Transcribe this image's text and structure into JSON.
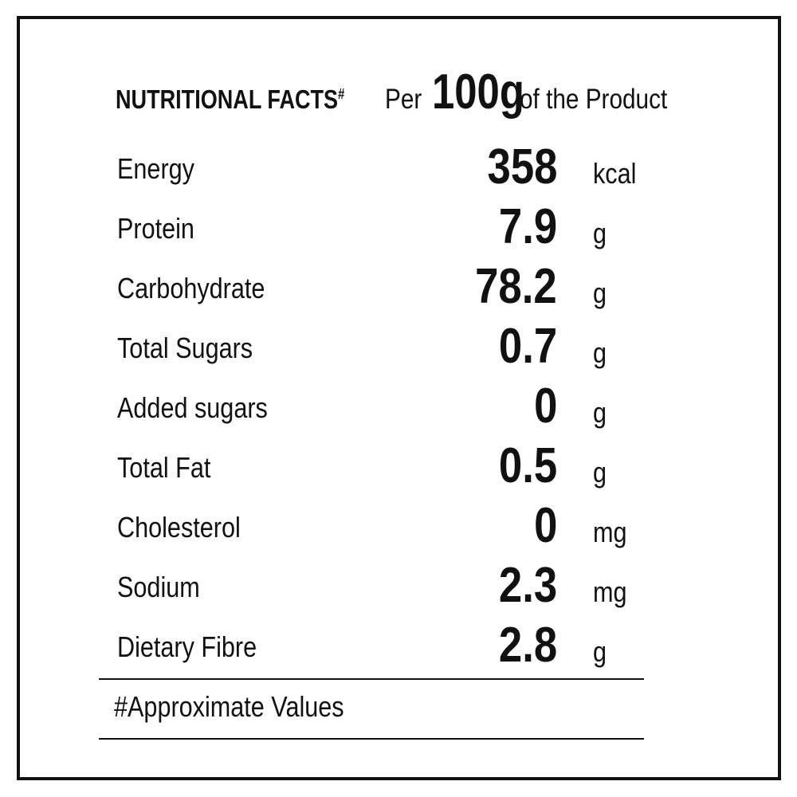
{
  "header": {
    "title": "NUTRITIONAL FACTS",
    "title_mark": "#",
    "per": "Per",
    "amount": "100g",
    "suffix": "of the Product"
  },
  "nutrients": [
    {
      "label": "Energy",
      "value": "358",
      "unit": "kcal"
    },
    {
      "label": "Protein",
      "value": "7.9",
      "unit": "g"
    },
    {
      "label": "Carbohydrate",
      "value": "78.2",
      "unit": "g"
    },
    {
      "label": "Total Sugars",
      "value": "0.7",
      "unit": "g"
    },
    {
      "label": "Added sugars",
      "value": "0",
      "unit": "g"
    },
    {
      "label": "Total Fat",
      "value": "0.5",
      "unit": "g"
    },
    {
      "label": "Cholesterol",
      "value": "0",
      "unit": "mg"
    },
    {
      "label": "Sodium",
      "value": "2.3",
      "unit": "mg"
    },
    {
      "label": "Dietary Fibre",
      "value": "2.8",
      "unit": "g"
    }
  ],
  "footnote": "#Approximate Values",
  "colors": {
    "ink": "#111111",
    "background": "#ffffff"
  }
}
